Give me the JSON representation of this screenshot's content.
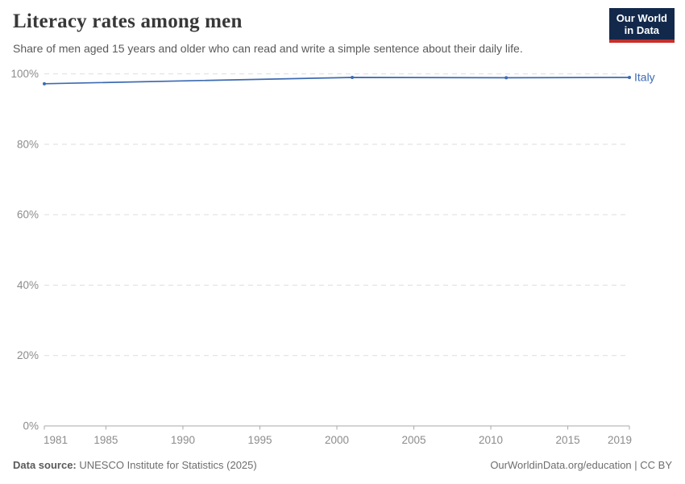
{
  "header": {
    "title": "Literacy rates among men",
    "subtitle": "Share of men aged 15 years and older who can read and write a simple sentence about their daily life.",
    "logo": {
      "line1": "Our World",
      "line2": "in Data",
      "bg_color": "#12294b",
      "accent_color": "#c5302b"
    }
  },
  "chart_data": {
    "type": "line",
    "title": "Literacy rates among men",
    "xlabel": "",
    "ylabel": "",
    "xlim": [
      1981,
      2019
    ],
    "ylim": [
      0,
      100
    ],
    "x_ticks": [
      1981,
      1985,
      1990,
      1995,
      2000,
      2005,
      2010,
      2015,
      2019
    ],
    "y_ticks": [
      0,
      20,
      40,
      60,
      80,
      100
    ],
    "y_tick_suffix": "%",
    "grid": "horizontal-dashed",
    "legend_position": "end-of-line",
    "series": [
      {
        "name": "Italy",
        "color": "#3d6bb3",
        "x": [
          1981,
          2001,
          2011,
          2019
        ],
        "values": [
          97.2,
          99.0,
          98.9,
          99.0
        ]
      }
    ]
  },
  "footer": {
    "datasource_label": "Data source:",
    "datasource_value": " UNESCO Institute for Statistics (2025)",
    "attribution": "OurWorldinData.org/education | CC BY"
  },
  "colors": {
    "axis_text": "#8c8c8c",
    "grid_line": "#dedede",
    "axis_line": "#a8a8a8",
    "title_text": "#383838",
    "subtitle_text": "#5a5a5a",
    "footer_text": "#6e6e6e"
  }
}
